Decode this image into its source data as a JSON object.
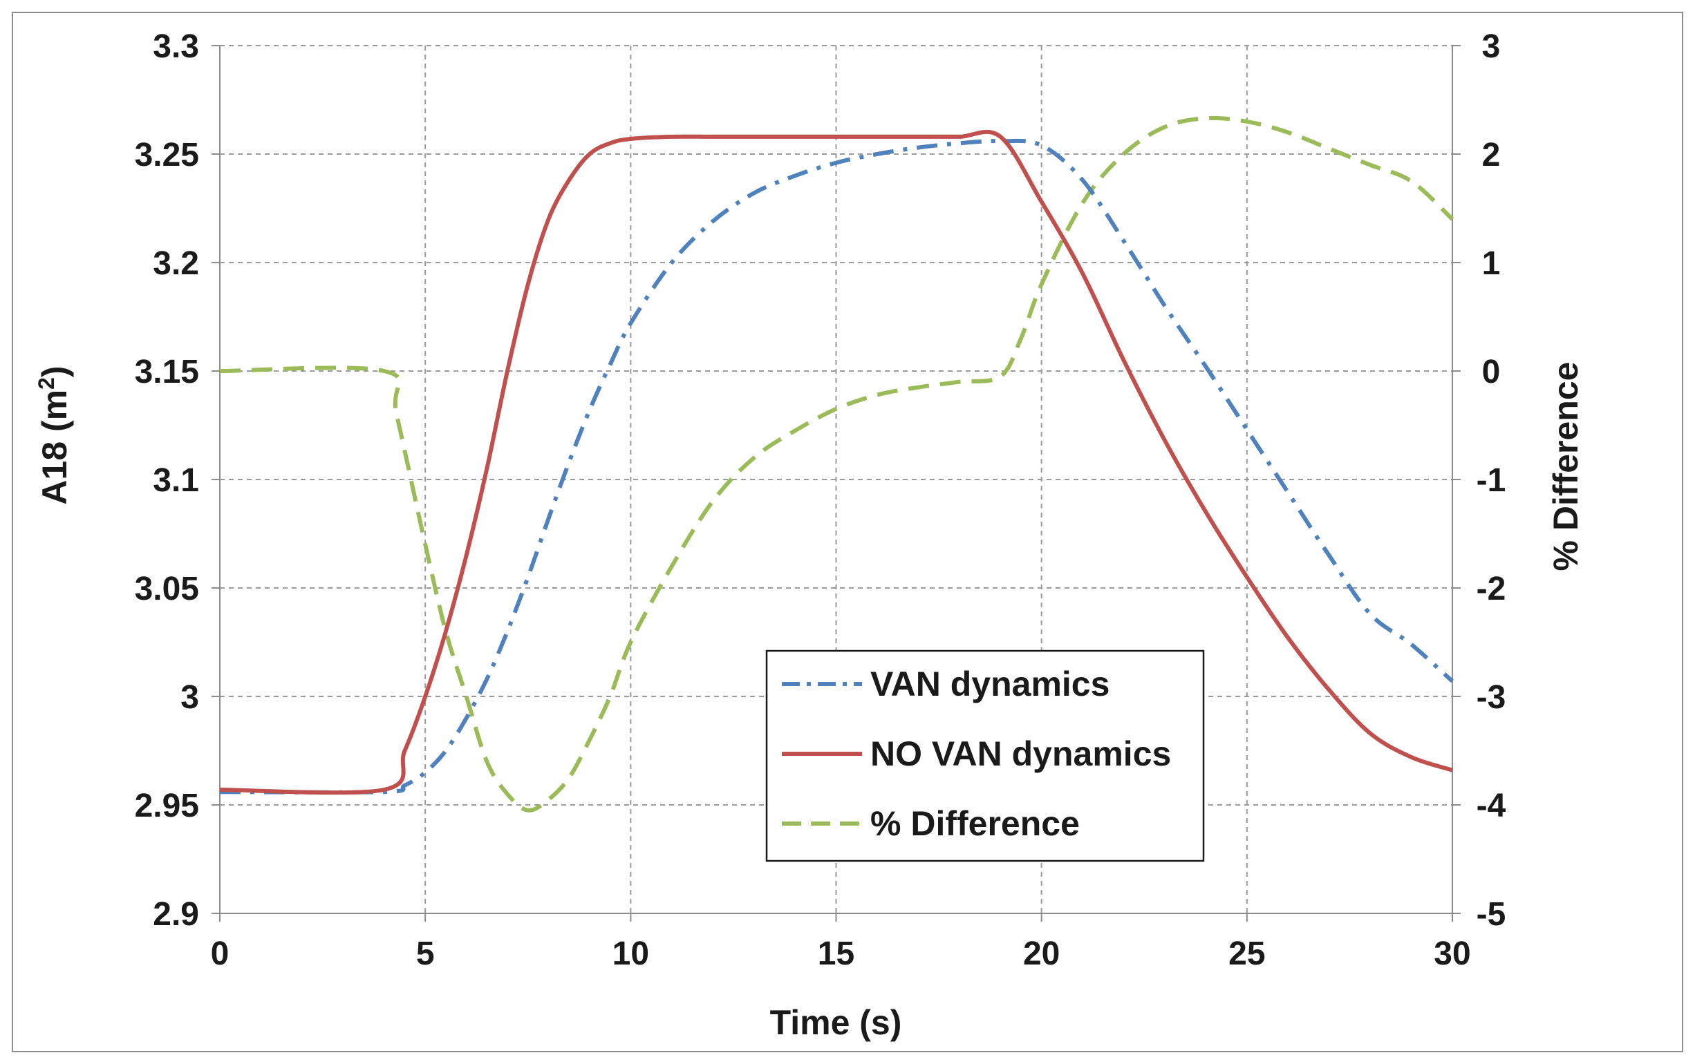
{
  "chart_data": {
    "type": "line",
    "title": "",
    "xlabel": "Time (s)",
    "ylabel_left": "A18 (m",
    "ylabel_left_sup": "2",
    "ylabel_left_end": ")",
    "ylabel_right": "% Difference",
    "xlim": [
      0,
      30
    ],
    "ylim_left": [
      2.9,
      3.3
    ],
    "ylim_right": [
      -5,
      3
    ],
    "x_ticks": [
      "0",
      "5",
      "10",
      "15",
      "20",
      "25",
      "30"
    ],
    "y_left_ticks": [
      "2.9",
      "2.95",
      "3",
      "3.05",
      "3.1",
      "3.15",
      "3.2",
      "3.25",
      "3.3"
    ],
    "y_right_ticks": [
      "-5",
      "-4",
      "-3",
      "-2",
      "-1",
      "0",
      "1",
      "2",
      "3"
    ],
    "grid": true,
    "legend_position": "center-bottom",
    "series": [
      {
        "name": "VAN dynamics",
        "axis": "left",
        "color": "#4f81bd",
        "style": "dashdot",
        "x": [
          0,
          4,
          4.5,
          5,
          5.5,
          6,
          6.5,
          7,
          7.5,
          8,
          8.5,
          9,
          9.5,
          10,
          11,
          12,
          13,
          14,
          15,
          16,
          17,
          18,
          19,
          20,
          21,
          22,
          23,
          24,
          25,
          26,
          27,
          28,
          29,
          30
        ],
        "values": [
          2.956,
          2.956,
          2.959,
          2.965,
          2.975,
          2.99,
          3.008,
          3.03,
          3.055,
          3.082,
          3.108,
          3.132,
          3.153,
          3.172,
          3.2,
          3.219,
          3.232,
          3.24,
          3.246,
          3.25,
          3.253,
          3.255,
          3.256,
          3.254,
          3.238,
          3.21,
          3.18,
          3.152,
          3.123,
          3.094,
          3.065,
          3.038,
          3.024,
          3.007
        ]
      },
      {
        "name": "NO VAN dynamics",
        "axis": "left",
        "color": "#c0504d",
        "style": "solid",
        "x": [
          0,
          4,
          4.5,
          5,
          5.5,
          6,
          6.5,
          7,
          7.5,
          8,
          8.5,
          9,
          9.5,
          10,
          11,
          12,
          13,
          14,
          15,
          16,
          17,
          18,
          19,
          20,
          21,
          22,
          23,
          24,
          25,
          26,
          27,
          28,
          29,
          30
        ],
        "values": [
          2.957,
          2.957,
          2.975,
          3.0,
          3.03,
          3.065,
          3.105,
          3.15,
          3.19,
          3.22,
          3.238,
          3.25,
          3.255,
          3.257,
          3.258,
          3.258,
          3.258,
          3.258,
          3.258,
          3.258,
          3.258,
          3.258,
          3.258,
          3.228,
          3.195,
          3.155,
          3.118,
          3.085,
          3.055,
          3.027,
          3.003,
          2.983,
          2.972,
          2.966
        ]
      },
      {
        "name": "% Difference",
        "axis": "right",
        "color": "#9bbb59",
        "style": "dashed",
        "x": [
          0,
          4,
          4.3,
          5,
          5.5,
          6,
          6.5,
          7,
          7.5,
          8,
          8.5,
          9,
          9.5,
          10,
          11,
          12,
          13,
          14,
          15,
          16,
          17,
          18,
          19,
          19.5,
          20,
          21,
          22,
          23,
          24,
          25,
          26,
          27,
          28,
          29,
          30
        ],
        "values": [
          0,
          0,
          -0.4,
          -1.6,
          -2.4,
          -3.0,
          -3.6,
          -3.9,
          -4.05,
          -3.95,
          -3.75,
          -3.4,
          -3.0,
          -2.5,
          -1.8,
          -1.2,
          -0.8,
          -0.55,
          -0.35,
          -0.22,
          -0.15,
          -0.1,
          -0.05,
          0.3,
          0.8,
          1.55,
          2.0,
          2.25,
          2.33,
          2.3,
          2.2,
          2.05,
          1.9,
          1.75,
          1.4
        ]
      }
    ]
  }
}
